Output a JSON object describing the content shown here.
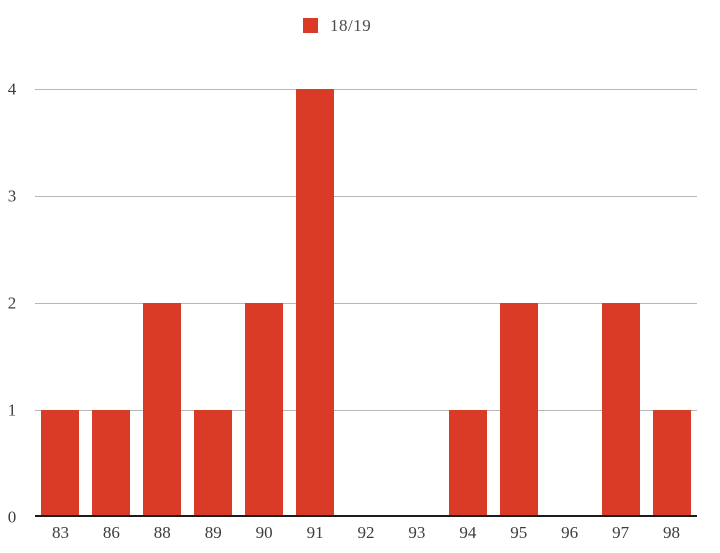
{
  "chart_data": {
    "type": "bar",
    "title": "",
    "categories": [
      "83",
      "86",
      "88",
      "89",
      "90",
      "91",
      "92",
      "93",
      "94",
      "95",
      "96",
      "97",
      "98"
    ],
    "series": [
      {
        "name": "18/19",
        "values": [
          1,
          1,
          2,
          1,
          2,
          4,
          0,
          0,
          1,
          2,
          0,
          2,
          1
        ]
      }
    ],
    "xlabel": "",
    "ylabel": "",
    "ylim": [
      0,
      4
    ],
    "yticks": [
      0,
      1,
      2,
      3,
      4
    ],
    "grid": true,
    "legend_position": "top-center",
    "colors": {
      "bar": "#d93b26",
      "gridline": "#b7b7b7",
      "axis_line": "#1c1c1c",
      "tick_label": "#403d39",
      "legend_label": "#4d4a46"
    }
  }
}
